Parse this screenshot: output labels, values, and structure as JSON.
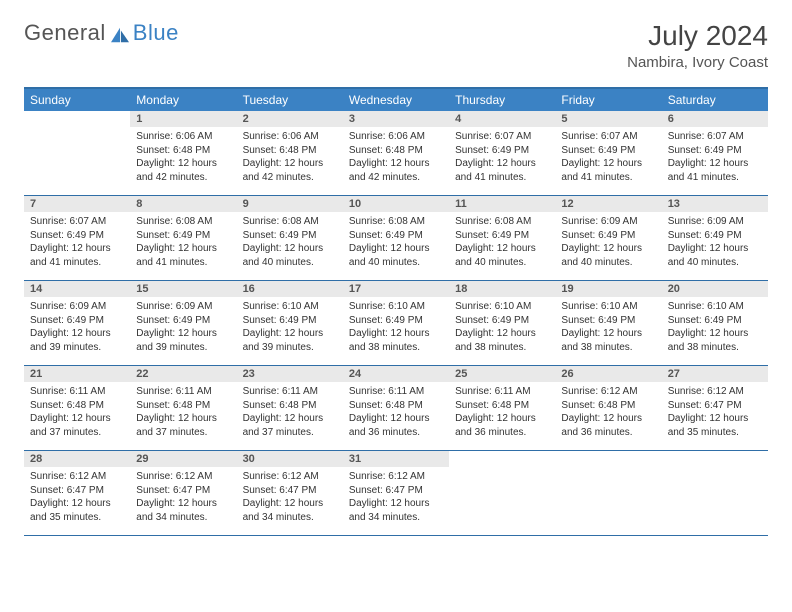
{
  "logo": {
    "part1": "General",
    "part2": "Blue"
  },
  "title": "July 2024",
  "subtitle": "Nambira, Ivory Coast",
  "colors": {
    "header_bg": "#3b82c4",
    "header_text": "#ffffff",
    "border": "#2f6ea7",
    "daynum_bg": "#e9e9e9",
    "body_text": "#333333",
    "page_bg": "#ffffff"
  },
  "weekdays": [
    "Sunday",
    "Monday",
    "Tuesday",
    "Wednesday",
    "Thursday",
    "Friday",
    "Saturday"
  ],
  "weeks": [
    [
      {
        "n": "",
        "sr": "",
        "ss": "",
        "d1": "",
        "d2": ""
      },
      {
        "n": "1",
        "sr": "Sunrise: 6:06 AM",
        "ss": "Sunset: 6:48 PM",
        "d1": "Daylight: 12 hours",
        "d2": "and 42 minutes."
      },
      {
        "n": "2",
        "sr": "Sunrise: 6:06 AM",
        "ss": "Sunset: 6:48 PM",
        "d1": "Daylight: 12 hours",
        "d2": "and 42 minutes."
      },
      {
        "n": "3",
        "sr": "Sunrise: 6:06 AM",
        "ss": "Sunset: 6:48 PM",
        "d1": "Daylight: 12 hours",
        "d2": "and 42 minutes."
      },
      {
        "n": "4",
        "sr": "Sunrise: 6:07 AM",
        "ss": "Sunset: 6:49 PM",
        "d1": "Daylight: 12 hours",
        "d2": "and 41 minutes."
      },
      {
        "n": "5",
        "sr": "Sunrise: 6:07 AM",
        "ss": "Sunset: 6:49 PM",
        "d1": "Daylight: 12 hours",
        "d2": "and 41 minutes."
      },
      {
        "n": "6",
        "sr": "Sunrise: 6:07 AM",
        "ss": "Sunset: 6:49 PM",
        "d1": "Daylight: 12 hours",
        "d2": "and 41 minutes."
      }
    ],
    [
      {
        "n": "7",
        "sr": "Sunrise: 6:07 AM",
        "ss": "Sunset: 6:49 PM",
        "d1": "Daylight: 12 hours",
        "d2": "and 41 minutes."
      },
      {
        "n": "8",
        "sr": "Sunrise: 6:08 AM",
        "ss": "Sunset: 6:49 PM",
        "d1": "Daylight: 12 hours",
        "d2": "and 41 minutes."
      },
      {
        "n": "9",
        "sr": "Sunrise: 6:08 AM",
        "ss": "Sunset: 6:49 PM",
        "d1": "Daylight: 12 hours",
        "d2": "and 40 minutes."
      },
      {
        "n": "10",
        "sr": "Sunrise: 6:08 AM",
        "ss": "Sunset: 6:49 PM",
        "d1": "Daylight: 12 hours",
        "d2": "and 40 minutes."
      },
      {
        "n": "11",
        "sr": "Sunrise: 6:08 AM",
        "ss": "Sunset: 6:49 PM",
        "d1": "Daylight: 12 hours",
        "d2": "and 40 minutes."
      },
      {
        "n": "12",
        "sr": "Sunrise: 6:09 AM",
        "ss": "Sunset: 6:49 PM",
        "d1": "Daylight: 12 hours",
        "d2": "and 40 minutes."
      },
      {
        "n": "13",
        "sr": "Sunrise: 6:09 AM",
        "ss": "Sunset: 6:49 PM",
        "d1": "Daylight: 12 hours",
        "d2": "and 40 minutes."
      }
    ],
    [
      {
        "n": "14",
        "sr": "Sunrise: 6:09 AM",
        "ss": "Sunset: 6:49 PM",
        "d1": "Daylight: 12 hours",
        "d2": "and 39 minutes."
      },
      {
        "n": "15",
        "sr": "Sunrise: 6:09 AM",
        "ss": "Sunset: 6:49 PM",
        "d1": "Daylight: 12 hours",
        "d2": "and 39 minutes."
      },
      {
        "n": "16",
        "sr": "Sunrise: 6:10 AM",
        "ss": "Sunset: 6:49 PM",
        "d1": "Daylight: 12 hours",
        "d2": "and 39 minutes."
      },
      {
        "n": "17",
        "sr": "Sunrise: 6:10 AM",
        "ss": "Sunset: 6:49 PM",
        "d1": "Daylight: 12 hours",
        "d2": "and 38 minutes."
      },
      {
        "n": "18",
        "sr": "Sunrise: 6:10 AM",
        "ss": "Sunset: 6:49 PM",
        "d1": "Daylight: 12 hours",
        "d2": "and 38 minutes."
      },
      {
        "n": "19",
        "sr": "Sunrise: 6:10 AM",
        "ss": "Sunset: 6:49 PM",
        "d1": "Daylight: 12 hours",
        "d2": "and 38 minutes."
      },
      {
        "n": "20",
        "sr": "Sunrise: 6:10 AM",
        "ss": "Sunset: 6:49 PM",
        "d1": "Daylight: 12 hours",
        "d2": "and 38 minutes."
      }
    ],
    [
      {
        "n": "21",
        "sr": "Sunrise: 6:11 AM",
        "ss": "Sunset: 6:48 PM",
        "d1": "Daylight: 12 hours",
        "d2": "and 37 minutes."
      },
      {
        "n": "22",
        "sr": "Sunrise: 6:11 AM",
        "ss": "Sunset: 6:48 PM",
        "d1": "Daylight: 12 hours",
        "d2": "and 37 minutes."
      },
      {
        "n": "23",
        "sr": "Sunrise: 6:11 AM",
        "ss": "Sunset: 6:48 PM",
        "d1": "Daylight: 12 hours",
        "d2": "and 37 minutes."
      },
      {
        "n": "24",
        "sr": "Sunrise: 6:11 AM",
        "ss": "Sunset: 6:48 PM",
        "d1": "Daylight: 12 hours",
        "d2": "and 36 minutes."
      },
      {
        "n": "25",
        "sr": "Sunrise: 6:11 AM",
        "ss": "Sunset: 6:48 PM",
        "d1": "Daylight: 12 hours",
        "d2": "and 36 minutes."
      },
      {
        "n": "26",
        "sr": "Sunrise: 6:12 AM",
        "ss": "Sunset: 6:48 PM",
        "d1": "Daylight: 12 hours",
        "d2": "and 36 minutes."
      },
      {
        "n": "27",
        "sr": "Sunrise: 6:12 AM",
        "ss": "Sunset: 6:47 PM",
        "d1": "Daylight: 12 hours",
        "d2": "and 35 minutes."
      }
    ],
    [
      {
        "n": "28",
        "sr": "Sunrise: 6:12 AM",
        "ss": "Sunset: 6:47 PM",
        "d1": "Daylight: 12 hours",
        "d2": "and 35 minutes."
      },
      {
        "n": "29",
        "sr": "Sunrise: 6:12 AM",
        "ss": "Sunset: 6:47 PM",
        "d1": "Daylight: 12 hours",
        "d2": "and 34 minutes."
      },
      {
        "n": "30",
        "sr": "Sunrise: 6:12 AM",
        "ss": "Sunset: 6:47 PM",
        "d1": "Daylight: 12 hours",
        "d2": "and 34 minutes."
      },
      {
        "n": "31",
        "sr": "Sunrise: 6:12 AM",
        "ss": "Sunset: 6:47 PM",
        "d1": "Daylight: 12 hours",
        "d2": "and 34 minutes."
      },
      {
        "n": "",
        "sr": "",
        "ss": "",
        "d1": "",
        "d2": ""
      },
      {
        "n": "",
        "sr": "",
        "ss": "",
        "d1": "",
        "d2": ""
      },
      {
        "n": "",
        "sr": "",
        "ss": "",
        "d1": "",
        "d2": ""
      }
    ]
  ]
}
